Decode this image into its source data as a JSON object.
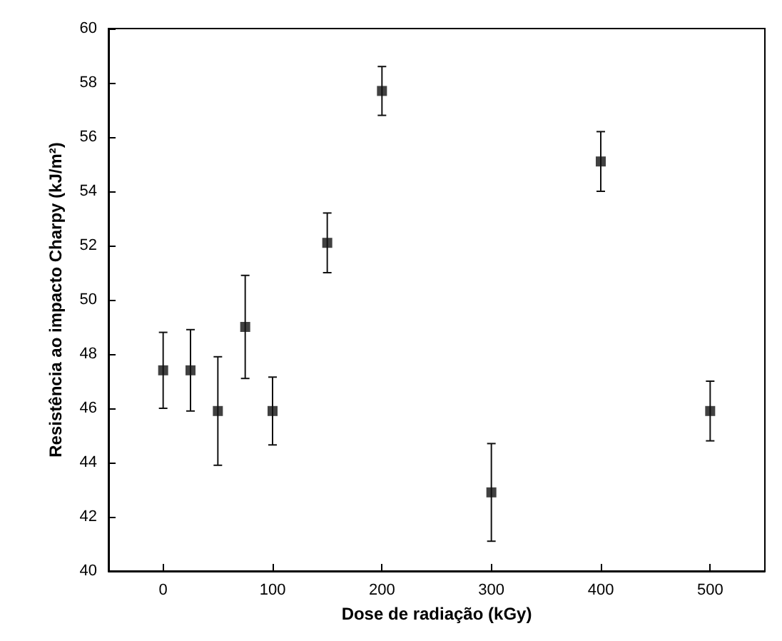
{
  "chart_data": {
    "type": "scatter",
    "xlabel": "Dose de radiação (kGy)",
    "ylabel": "Resistência ao impacto Charpy (kJ/m²)",
    "x": [
      0,
      25,
      50,
      75,
      100,
      150,
      200,
      300,
      400,
      500
    ],
    "values": [
      47.4,
      47.4,
      45.9,
      49,
      45.9,
      52.1,
      57.7,
      42.9,
      55.1,
      45.9
    ],
    "errors": [
      1.4,
      1.5,
      2,
      1.9,
      1.25,
      1.1,
      0.9,
      1.8,
      1.1,
      1.1
    ],
    "color": "#111111",
    "marker": "square",
    "grid": false,
    "xlim": [
      -50,
      550
    ],
    "xticks": [
      0,
      100,
      200,
      300,
      400,
      500
    ],
    "ylim": [
      40,
      60
    ],
    "yticks": [
      40,
      42,
      44,
      46,
      48,
      50,
      52,
      54,
      56,
      58,
      60
    ]
  }
}
